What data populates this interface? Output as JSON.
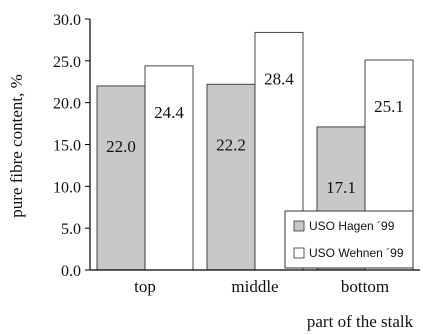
{
  "chart_data": {
    "type": "bar",
    "categories": [
      "top",
      "middle",
      "bottom"
    ],
    "series": [
      {
        "name": "USO Hagen ´99",
        "values": [
          22.0,
          22.2,
          17.1
        ],
        "color": "#c8c8c8",
        "labels": [
          "22.0",
          "22.2",
          "17.1"
        ]
      },
      {
        "name": "USO Wehnen ´99",
        "values": [
          24.4,
          28.4,
          25.1
        ],
        "color": "#ffffff",
        "labels": [
          "24.4",
          "28.4",
          "25.1"
        ]
      }
    ],
    "xlabel": "part of the stalk",
    "ylabel": "pure fibre content, %",
    "ylim": [
      0,
      30
    ],
    "yticks": [
      "0.0",
      "5.0",
      "10.0",
      "15.0",
      "20.0",
      "25.0",
      "30.0"
    ],
    "legend_position": "bottom-right",
    "grid": false
  }
}
